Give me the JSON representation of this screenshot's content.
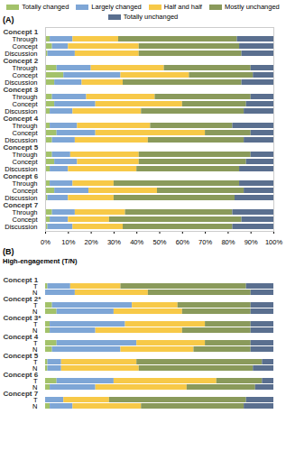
{
  "chart_data": [
    {
      "type": "bar",
      "title": "(A)",
      "orientation": "horizontal",
      "stacked": true,
      "legend": "top",
      "grid": false,
      "xlim": [
        0,
        100
      ],
      "xticks": [
        {
          "value": 0,
          "label": "0%"
        },
        {
          "value": 10,
          "label": "10%"
        },
        {
          "value": 20,
          "label": "20%"
        },
        {
          "value": 30,
          "label": "30%"
        },
        {
          "value": 40,
          "label": "40%"
        },
        {
          "value": 50,
          "label": "50%"
        },
        {
          "value": 60,
          "label": "60%"
        },
        {
          "value": 70,
          "label": "70%"
        },
        {
          "value": 80,
          "label": "80%"
        },
        {
          "value": 90,
          "label": "90%"
        },
        {
          "value": 100,
          "label": "100%"
        }
      ],
      "series": [
        {
          "name": "Totally changed",
          "color": "#a3c26a"
        },
        {
          "name": "Largely changed",
          "color": "#7ea6d6"
        },
        {
          "name": "Half and half",
          "color": "#f7c948"
        },
        {
          "name": "Mostly unchanged",
          "color": "#8a9a5b"
        },
        {
          "name": "Totally unchanged",
          "color": "#5a6f8f"
        }
      ],
      "groups": [
        {
          "name": "Concept 1",
          "categories": [
            "Through",
            "Concept",
            "Discussion"
          ],
          "values": [
            [
              2,
              10,
              20,
              52,
              16
            ],
            [
              3,
              7,
              31,
              44,
              15
            ],
            [
              1,
              12,
              28,
              45,
              14
            ]
          ]
        },
        {
          "name": "Concept 2",
          "categories": [
            "Through",
            "Concept",
            "Discussion"
          ],
          "values": [
            [
              5,
              15,
              32,
              38,
              10
            ],
            [
              8,
              25,
              30,
              28,
              9
            ],
            [
              4,
              12,
              18,
              52,
              14
            ]
          ]
        },
        {
          "name": "Concept 3",
          "categories": [
            "Through",
            "Concept",
            "Discussion"
          ],
          "values": [
            [
              3,
              15,
              30,
              42,
              10
            ],
            [
              4,
              18,
              38,
              28,
              12
            ],
            [
              2,
              10,
              30,
              45,
              13
            ]
          ]
        },
        {
          "name": "Concept 4",
          "categories": [
            "Through",
            "Concept",
            "Discussion"
          ],
          "values": [
            [
              2,
              12,
              32,
              36,
              18
            ],
            [
              5,
              17,
              48,
              20,
              10
            ],
            [
              3,
              10,
              32,
              42,
              13
            ]
          ]
        },
        {
          "name": "Concept 5",
          "categories": [
            "Through",
            "Concept",
            "Discussion"
          ],
          "values": [
            [
              3,
              8,
              30,
              49,
              10
            ],
            [
              4,
              10,
              27,
              47,
              12
            ],
            [
              2,
              8,
              30,
              45,
              15
            ]
          ]
        },
        {
          "name": "Concept 6",
          "categories": [
            "Through",
            "Concept",
            "Discussion"
          ],
          "values": [
            [
              2,
              10,
              18,
              55,
              15
            ],
            [
              4,
              15,
              30,
              38,
              13
            ],
            [
              1,
              9,
              20,
              53,
              17
            ]
          ]
        },
        {
          "name": "Concept 7",
          "categories": [
            "Through",
            "Concept",
            "Discussion"
          ],
          "values": [
            [
              3,
              10,
              22,
              47,
              18
            ],
            [
              2,
              8,
              18,
              58,
              14
            ],
            [
              1,
              11,
              22,
              48,
              18
            ]
          ]
        }
      ]
    },
    {
      "type": "bar",
      "title": "(B)",
      "subtitle": "High-engagement (T/N)",
      "orientation": "horizontal",
      "stacked": true,
      "grid": false,
      "tick_labels": "y",
      "xlim": [
        0,
        100
      ],
      "series": [
        {
          "name": "Totally changed",
          "color": "#a3c26a"
        },
        {
          "name": "Largely changed",
          "color": "#7ea6d6"
        },
        {
          "name": "Half and half",
          "color": "#f7c948"
        },
        {
          "name": "Mostly unchanged",
          "color": "#8a9a5b"
        },
        {
          "name": "Totally unchanged",
          "color": "#5a6f8f"
        }
      ],
      "groups": [
        {
          "name": "Concept 1",
          "categories": [
            "T",
            "N"
          ],
          "values": [
            [
              1,
              10,
              22,
              55,
              12
            ],
            [
              0,
              13,
              32,
              45,
              10
            ]
          ]
        },
        {
          "name": "Concept 2*",
          "categories": [
            "T",
            "N"
          ],
          "values": [
            [
              3,
              35,
              20,
              32,
              10
            ],
            [
              5,
              25,
              30,
              30,
              10
            ]
          ]
        },
        {
          "name": "Concept 3*",
          "categories": [
            "T",
            "N"
          ],
          "values": [
            [
              2,
              33,
              35,
              20,
              10
            ],
            [
              2,
              20,
              38,
              30,
              10
            ]
          ]
        },
        {
          "name": "Concept 4",
          "categories": [
            "T",
            "N"
          ],
          "values": [
            [
              5,
              35,
              30,
              20,
              10
            ],
            [
              3,
              30,
              32,
              25,
              10
            ]
          ]
        },
        {
          "name": "Concept 5",
          "categories": [
            "T",
            "N"
          ],
          "values": [
            [
              1,
              6,
              33,
              55,
              5
            ],
            [
              1,
              6,
              34,
              50,
              9
            ]
          ]
        },
        {
          "name": "Concept 6",
          "categories": [
            "T",
            "N"
          ],
          "values": [
            [
              5,
              25,
              45,
              20,
              5
            ],
            [
              2,
              20,
              40,
              30,
              8
            ]
          ]
        },
        {
          "name": "Concept 7",
          "categories": [
            "T",
            "N"
          ],
          "values": [
            [
              0,
              8,
              20,
              60,
              12
            ],
            [
              2,
              10,
              30,
              45,
              13
            ]
          ]
        }
      ]
    }
  ]
}
